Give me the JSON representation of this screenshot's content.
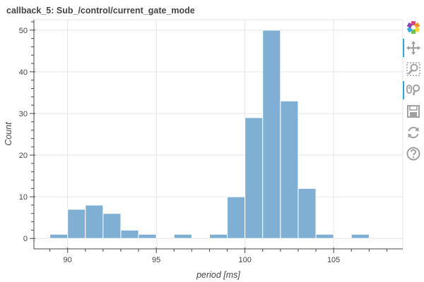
{
  "title": "callback_5: Sub_/control/current_gate_mode",
  "toolbar": {
    "tools": [
      {
        "name": "bokeh-logo-icon",
        "active": false
      },
      {
        "name": "pan-tool-icon",
        "active": true
      },
      {
        "name": "box-zoom-tool-icon",
        "active": false
      },
      {
        "name": "wheel-zoom-tool-icon",
        "active": true
      },
      {
        "name": "save-tool-icon",
        "active": false
      },
      {
        "name": "reset-tool-icon",
        "active": false
      },
      {
        "name": "help-tool-icon",
        "active": false
      }
    ]
  },
  "chart_data": {
    "type": "bar",
    "title": "callback_5: Sub_/control/current_gate_mode",
    "xlabel": "period [ms]",
    "ylabel": "Count",
    "xlim": [
      88.1,
      108.9
    ],
    "ylim": [
      -2.5,
      52.5
    ],
    "xticks": [
      90,
      95,
      100,
      105
    ],
    "yticks": [
      0,
      10,
      20,
      30,
      40,
      50
    ],
    "grid": true,
    "bin_width": 1,
    "bins": [
      {
        "start": 89,
        "end": 90,
        "count": 1
      },
      {
        "start": 90,
        "end": 91,
        "count": 7
      },
      {
        "start": 91,
        "end": 92,
        "count": 8
      },
      {
        "start": 92,
        "end": 93,
        "count": 6
      },
      {
        "start": 93,
        "end": 94,
        "count": 2
      },
      {
        "start": 94,
        "end": 95,
        "count": 1
      },
      {
        "start": 95,
        "end": 96,
        "count": 0
      },
      {
        "start": 96,
        "end": 97,
        "count": 1
      },
      {
        "start": 97,
        "end": 98,
        "count": 0
      },
      {
        "start": 98,
        "end": 99,
        "count": 1
      },
      {
        "start": 99,
        "end": 100,
        "count": 10
      },
      {
        "start": 100,
        "end": 101,
        "count": 29
      },
      {
        "start": 101,
        "end": 102,
        "count": 50
      },
      {
        "start": 102,
        "end": 103,
        "count": 33
      },
      {
        "start": 103,
        "end": 104,
        "count": 12
      },
      {
        "start": 104,
        "end": 105,
        "count": 1
      },
      {
        "start": 105,
        "end": 106,
        "count": 0
      },
      {
        "start": 106,
        "end": 107,
        "count": 1
      },
      {
        "start": 107,
        "end": 108,
        "count": 0
      }
    ],
    "colors": {
      "bar": "#7fb0d3",
      "bar_edge": "#ffffff",
      "grid": "#e5e5e5",
      "axis": "#444444"
    }
  }
}
